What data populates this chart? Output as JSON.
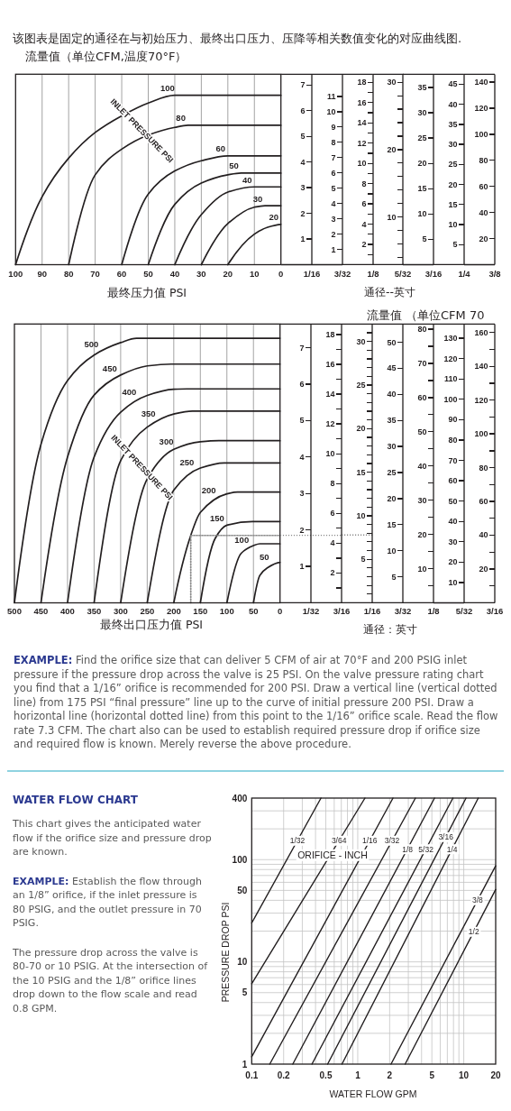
{
  "chart_data": [
    {
      "type": "line",
      "title": "该图表是固定的通径在与初始压力、最终出口压力、压降等相关数值变化的对应曲线图.",
      "subtitle": "流量值（单位CFM,温度70°F）",
      "xlabel": "最终压力值 PSI",
      "annotations": [
        "INLET PRESSURE PSI"
      ],
      "xlim": [
        100,
        0
      ],
      "xticks": [
        100,
        90,
        80,
        70,
        60,
        50,
        40,
        30,
        20,
        10,
        0
      ],
      "ylim": [
        0,
        7.42
      ],
      "tick_labels": "x",
      "grid": "x",
      "series": [
        {
          "name": "100",
          "color": "#231f20",
          "x": [
            100,
            90,
            80,
            70,
            60,
            50,
            40,
            0
          ],
          "values": [
            0,
            2.65,
            4.15,
            5.15,
            5.8,
            6.3,
            6.6,
            6.6
          ]
        },
        {
          "name": "80",
          "color": "#231f20",
          "x": [
            80,
            70,
            60,
            50,
            40,
            35,
            0
          ],
          "values": [
            0,
            3.5,
            4.5,
            5.05,
            5.35,
            5.43,
            5.43
          ]
        },
        {
          "name": "60",
          "color": "#231f20",
          "x": [
            60,
            50,
            40,
            30,
            20,
            0
          ],
          "values": [
            0,
            2.75,
            3.65,
            4.05,
            4.24,
            4.24
          ]
        },
        {
          "name": "50",
          "color": "#231f20",
          "x": [
            50,
            40,
            30,
            20,
            15,
            0
          ],
          "values": [
            0,
            2.35,
            3.18,
            3.5,
            3.57,
            3.57
          ]
        },
        {
          "name": "40",
          "color": "#231f20",
          "x": [
            40,
            30,
            20,
            10,
            0
          ],
          "values": [
            0,
            1.95,
            2.83,
            3.03,
            3.03
          ]
        },
        {
          "name": "30",
          "color": "#231f20",
          "x": [
            30,
            20,
            10,
            6,
            0
          ],
          "values": [
            0,
            1.6,
            2.24,
            2.3,
            2.3
          ]
        },
        {
          "name": "20",
          "color": "#231f20",
          "x": [
            20,
            10,
            5,
            0
          ],
          "values": [
            0,
            1.19,
            1.46,
            1.57
          ]
        }
      ]
    },
    {
      "type": "line",
      "categories": [
        "1/16"
      ],
      "values": [
        null
      ],
      "ylim": [
        0,
        7.42
      ],
      "yticks": [
        1,
        2,
        3,
        4,
        5,
        6,
        7
      ]
    },
    {
      "type": "line",
      "categories": [
        "3/32"
      ],
      "values": [
        null
      ],
      "ylim": [
        0,
        12.45
      ],
      "yticks": [
        1,
        2,
        3,
        4,
        5,
        6,
        7,
        8,
        9,
        10,
        11
      ]
    },
    {
      "type": "line",
      "categories": [
        "1/8"
      ],
      "values": [
        null
      ],
      "xlabel": "通径--英寸",
      "ylim": [
        0,
        18.8
      ],
      "yticks": [
        2,
        4,
        6,
        8,
        10,
        12,
        14,
        16,
        18
      ]
    },
    {
      "type": "line",
      "categories": [
        "5/32"
      ],
      "values": [
        null
      ],
      "ylim": [
        2.9,
        31.2
      ],
      "yticks": [
        10,
        20,
        30
      ]
    },
    {
      "type": "line",
      "categories": [
        "3/16"
      ],
      "values": [
        null
      ],
      "ylim": [
        0,
        37.6
      ],
      "yticks": [
        5,
        10,
        15,
        20,
        25,
        30,
        35
      ]
    },
    {
      "type": "line",
      "categories": [
        "1/4"
      ],
      "values": [
        null
      ],
      "ylim": [
        0,
        47.5
      ],
      "yticks": [
        5,
        10,
        15,
        20,
        25,
        30,
        35,
        40,
        45
      ]
    },
    {
      "type": "line",
      "categories": [
        "3/8"
      ],
      "values": [
        null
      ],
      "ylim": [
        0,
        146
      ],
      "yticks": [
        20,
        40,
        60,
        80,
        100,
        120,
        140
      ]
    },
    {
      "type": "line",
      "xlabel": "最终出口压力值 PSI",
      "annotations": [
        "INLET PRESSURE PSI"
      ],
      "xlim": [
        500,
        0
      ],
      "xticks": [
        500,
        450,
        400,
        350,
        300,
        250,
        200,
        150,
        100,
        50,
        0
      ],
      "ylim": [
        0,
        7.65
      ],
      "tick_labels": "x",
      "grid": "x",
      "series": [
        {
          "name": "500",
          "color": "#231f20",
          "x": [
            500,
            450,
            400,
            350,
            300,
            270,
            0
          ],
          "values": [
            0,
            4.35,
            6.1,
            6.8,
            7.14,
            7.26,
            7.26
          ]
        },
        {
          "name": "450",
          "color": "#231f20",
          "x": [
            450,
            400,
            350,
            300,
            250,
            205,
            0
          ],
          "values": [
            0,
            4.0,
            5.7,
            6.25,
            6.5,
            6.55,
            6.55
          ]
        },
        {
          "name": "400",
          "color": "#231f20",
          "x": [
            400,
            350,
            300,
            250,
            200,
            175,
            0
          ],
          "values": [
            0,
            4.0,
            5.23,
            5.69,
            5.86,
            5.87,
            5.87
          ]
        },
        {
          "name": "350",
          "color": "#231f20",
          "x": [
            350,
            300,
            250,
            200,
            165,
            0
          ],
          "values": [
            0,
            3.9,
            4.82,
            5.18,
            5.26,
            5.26
          ]
        },
        {
          "name": "300",
          "color": "#231f20",
          "x": [
            300,
            250,
            200,
            150,
            115,
            0
          ],
          "values": [
            0,
            3.4,
            4.21,
            4.42,
            4.45,
            4.45
          ]
        },
        {
          "name": "250",
          "color": "#231f20",
          "x": [
            250,
            200,
            150,
            105,
            0
          ],
          "values": [
            0,
            3.09,
            3.7,
            3.84,
            3.84
          ]
        },
        {
          "name": "200",
          "color": "#231f20",
          "x": [
            200,
            168,
            150,
            100,
            80,
            0
          ],
          "values": [
            0,
            1.85,
            2.48,
            2.99,
            3.04,
            3.04
          ]
        },
        {
          "name": "150",
          "color": "#231f20",
          "x": [
            150,
            122,
            100,
            52,
            0
          ],
          "values": [
            0,
            1.77,
            2.13,
            2.23,
            2.23
          ]
        },
        {
          "name": "100",
          "color": "#231f20",
          "x": [
            100,
            73,
            50,
            38,
            0
          ],
          "values": [
            0,
            1.36,
            1.57,
            1.62,
            1.62
          ]
        },
        {
          "name": "50",
          "color": "#231f20",
          "x": [
            50,
            38,
            24,
            0
          ],
          "values": [
            0,
            0.75,
            0.96,
            1.11
          ]
        },
        {
          "color": "#8a8a8a",
          "line_style": "dotted",
          "x": [
            168,
            168,
            0
          ],
          "values": [
            0,
            1.85,
            1.85
          ]
        }
      ]
    },
    {
      "type": "line",
      "categories": [
        "1/32"
      ],
      "values": [
        null
      ],
      "ylim": [
        0,
        7.65
      ],
      "yticks": [
        1,
        2,
        3,
        4,
        5,
        6,
        7
      ],
      "ref_lines": [
        {
          "axis": "y",
          "value": 1.85,
          "color": "#8a8a8a",
          "line_style": "dotted"
        }
      ]
    },
    {
      "type": "line",
      "categories": [
        "3/16"
      ],
      "values": [
        null
      ],
      "ylim": [
        0,
        18.7
      ],
      "yticks": [
        2,
        4,
        6,
        8,
        10,
        12,
        14,
        16,
        18
      ],
      "ref_lines": [
        {
          "axis": "y",
          "value": 4.55,
          "color": "#8a8a8a",
          "line_style": "dotted"
        }
      ]
    },
    {
      "type": "line",
      "categories": [
        "1/16"
      ],
      "values": [
        null
      ],
      "xlabel": "通径：英寸",
      "ylim": [
        0,
        32
      ],
      "yticks": [
        5,
        10,
        15,
        20,
        25,
        30
      ]
    },
    {
      "type": "line",
      "title": "流量值 （单位CFM 70",
      "categories": [
        "3/32"
      ],
      "values": [
        null
      ],
      "ylim": [
        0,
        53.5
      ],
      "yticks": [
        5,
        10,
        15,
        20,
        25,
        30,
        35,
        40,
        45,
        50
      ]
    },
    {
      "type": "line",
      "categories": [
        "1/8"
      ],
      "values": [
        null
      ],
      "ylim": [
        0,
        81.5
      ],
      "yticks": [
        10,
        20,
        30,
        40,
        50,
        60,
        70,
        80
      ]
    },
    {
      "type": "line",
      "categories": [
        "5/32"
      ],
      "values": [
        null
      ],
      "ylim": [
        0,
        137
      ],
      "yticks": [
        10,
        20,
        30,
        40,
        50,
        60,
        70,
        80,
        90,
        100,
        110,
        120,
        130
      ]
    },
    {
      "type": "line",
      "categories": [
        "3/16"
      ],
      "values": [
        null
      ],
      "ylim": [
        0,
        165
      ],
      "yticks": [
        20,
        40,
        60,
        80,
        100,
        120,
        140,
        160
      ]
    },
    {
      "type": "other",
      "annotations": [
        "EXAMPLE:",
        "Find the orifice size that can deliver 5 CFM of air at 70°F and 200 PSIG inlet pressure if the pressure drop across the valve is 25 PSI. On the valve pressure rating chart you find that a 1/16” orifice is recommended for 200 PSI. Draw a vertical line (vertical dotted line) from 175 PSI “final pressure” line up to the curve of initial pressure 200 PSI. Draw a horizontal line (horizontal dotted line) from this point to the 1/16” orifice scale. Read the flow rate 7.3 CFM. The chart also can be used to establish required pressure drop if orifice size and required flow is known. Merely reverse the above procedure."
      ]
    },
    {
      "type": "other",
      "title": "WATER FLOW CHART",
      "annotations": [
        "This chart gives the anticipated water flow if the orifice size and pressure drop are known.",
        "EXAMPLE:",
        "Establish the flow through an 1/8” orifice, if the inlet pressure is 80 PSIG, and the outlet pressure in 70 PSIG.",
        "The pressure drop across the valve is 80-70 or 10 PSIG. At the intersection of the 10 PSIG and the 1/8” orifice lines drop down to the flow scale and read 0.8 GPM."
      ]
    },
    {
      "type": "line",
      "annotations": [
        "ORIFICE - INCH"
      ],
      "xlabel": "WATER FLOW GPM",
      "ylabel": "PRESSURE DROP PSI",
      "log": "xy",
      "xlim": [
        0.1,
        20
      ],
      "ylim": [
        1,
        400
      ],
      "xticks": [
        0.1,
        0.2,
        0.5,
        1,
        2,
        5,
        10,
        20
      ],
      "yticks": [
        1,
        5,
        10,
        50,
        100,
        400
      ],
      "grid": true,
      "series": [
        {
          "name": "1/32",
          "color": "#231f20",
          "x": [
            0.1,
            0.45
          ],
          "values": [
            24,
            400
          ]
        },
        {
          "name": "3/64",
          "color": "#231f20",
          "x": [
            0.1,
            1.17
          ],
          "values": [
            6.1,
            400
          ]
        },
        {
          "name": "1/16",
          "color": "#231f20",
          "x": [
            0.1,
            2.15
          ],
          "values": [
            1.18,
            400
          ]
        },
        {
          "name": "3/32",
          "color": "#231f20",
          "x": [
            0.148,
            3.5
          ],
          "values": [
            1,
            400
          ]
        },
        {
          "name": "1/8",
          "color": "#231f20",
          "x": [
            0.244,
            5.3
          ],
          "values": [
            1,
            400
          ]
        },
        {
          "name": "5/32",
          "color": "#231f20",
          "x": [
            0.37,
            7.9
          ],
          "values": [
            1,
            400
          ]
        },
        {
          "name": "3/16",
          "color": "#231f20",
          "x": [
            0.52,
            10.5
          ],
          "values": [
            1,
            400
          ]
        },
        {
          "name": "1/4",
          "color": "#231f20",
          "x": [
            0.71,
            13.7
          ],
          "values": [
            1,
            400
          ]
        },
        {
          "name": "3/8",
          "color": "#231f20",
          "x": [
            2.06,
            20
          ],
          "values": [
            1,
            87
          ]
        },
        {
          "name": "1/2",
          "color": "#231f20",
          "x": [
            2.8,
            20
          ],
          "values": [
            1,
            51
          ]
        }
      ]
    }
  ]
}
